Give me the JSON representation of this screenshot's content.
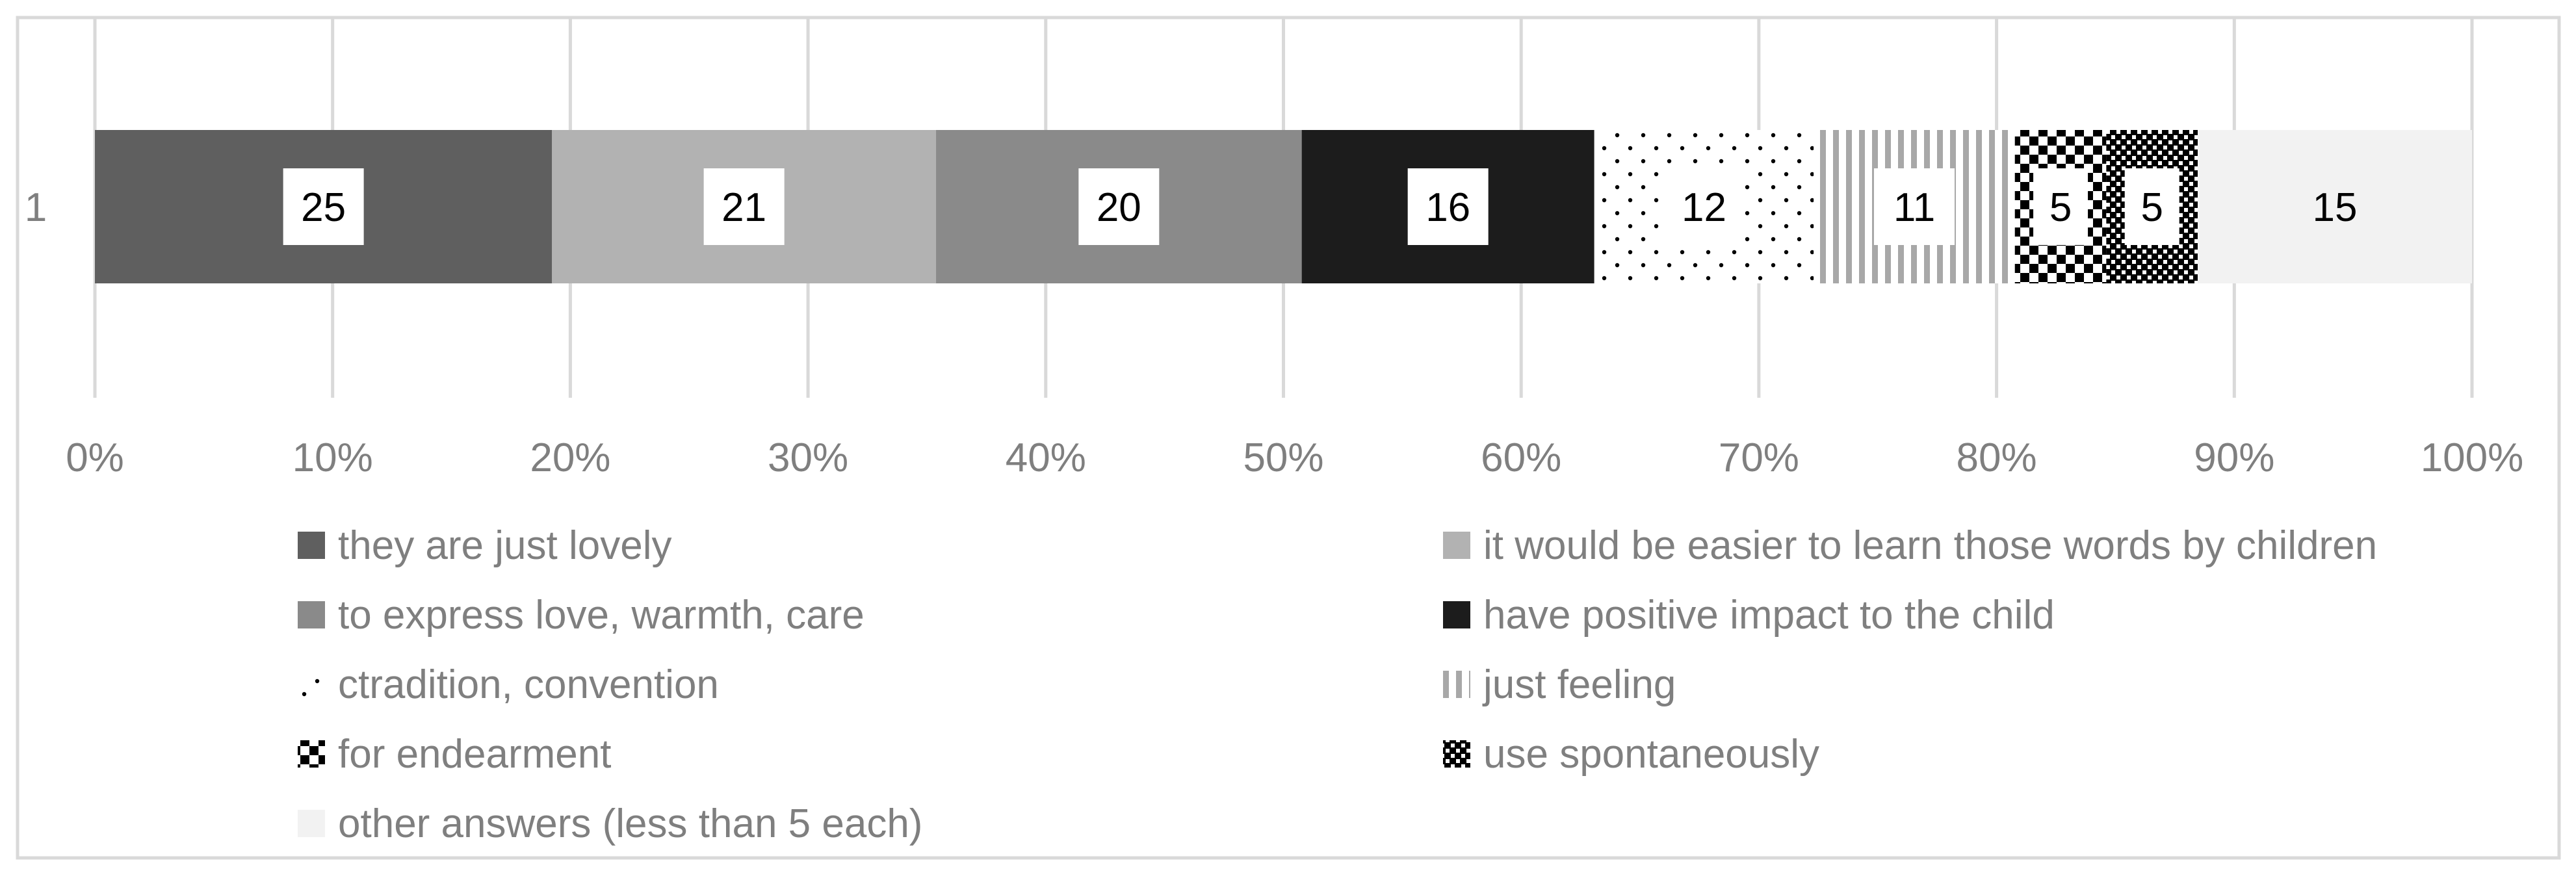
{
  "chart_data": {
    "type": "bar",
    "orientation": "horizontal",
    "stacking": "percent",
    "categories": [
      "1"
    ],
    "x_ticks": [
      "0%",
      "10%",
      "20%",
      "30%",
      "40%",
      "50%",
      "60%",
      "70%",
      "80%",
      "90%",
      "100%"
    ],
    "xlim": [
      0,
      100
    ],
    "grid": true,
    "legend_position": "bottom",
    "series": [
      {
        "name": "they are just lovely",
        "values": [
          25
        ],
        "label": "25",
        "fill": "#5f5f5f",
        "pattern": "solid"
      },
      {
        "name": "it would be easier to learn those words by children",
        "values": [
          21
        ],
        "label": "21",
        "fill": "#b2b2b2",
        "pattern": "solid"
      },
      {
        "name": "to express love, warmth, care",
        "values": [
          20
        ],
        "label": "20",
        "fill": "#8a8a8a",
        "pattern": "solid"
      },
      {
        "name": "have positive impact to the child",
        "values": [
          16
        ],
        "label": "16",
        "fill": "#1c1c1c",
        "pattern": "solid"
      },
      {
        "name": "ctradition, convention",
        "values": [
          12
        ],
        "label": "12",
        "fill": "#ffffff",
        "pattern": "dots"
      },
      {
        "name": "just feeling",
        "values": [
          11
        ],
        "label": "11",
        "fill": "#ffffff",
        "pattern": "vertical-stripes"
      },
      {
        "name": "for endearment",
        "values": [
          5
        ],
        "label": "5",
        "fill": "#ffffff",
        "pattern": "checker"
      },
      {
        "name": "use spontaneously",
        "values": [
          5
        ],
        "label": "5",
        "fill": "#000000",
        "pattern": "small-checker"
      },
      {
        "name": "other answers (less than 5 each)",
        "values": [
          15
        ],
        "label": "15",
        "fill": "#f2f2f2",
        "pattern": "solid"
      }
    ]
  }
}
